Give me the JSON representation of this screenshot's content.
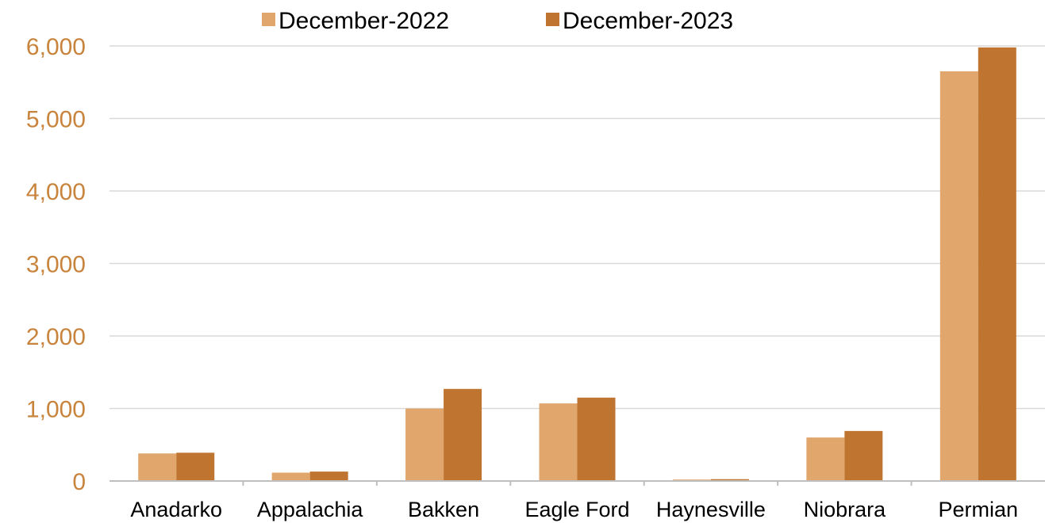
{
  "chart_data": {
    "type": "bar",
    "title": "",
    "xlabel": "",
    "ylabel": "",
    "categories": [
      "Anadarko",
      "Appalachia",
      "Bakken",
      "Eagle Ford",
      "Haynesville",
      "Niobrara",
      "Permian"
    ],
    "series": [
      {
        "name": "December-2022",
        "color": "#e0a66c",
        "values": [
          380,
          115,
          1000,
          1070,
          20,
          600,
          5650
        ]
      },
      {
        "name": "December-2023",
        "color": "#bf7530",
        "values": [
          390,
          130,
          1270,
          1150,
          25,
          690,
          5980
        ]
      }
    ],
    "ylim": [
      0,
      6000
    ],
    "yticks": [
      0,
      1000,
      2000,
      3000,
      4000,
      5000,
      6000
    ],
    "ytick_labels": [
      "0",
      "1,000",
      "2,000",
      "3,000",
      "4,000",
      "5,000",
      "6,000"
    ],
    "grid": true,
    "legend_position": "top-center",
    "colors": {
      "tick_label": "#c8843c",
      "gridline": "#d9d9d9",
      "axis": "#bfbfbf"
    }
  }
}
